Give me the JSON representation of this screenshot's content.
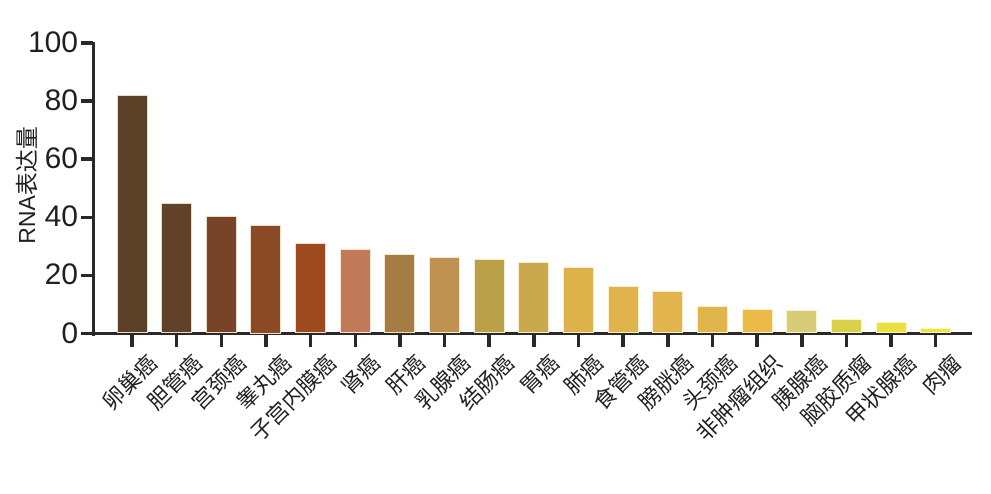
{
  "chart_data": {
    "type": "bar",
    "ylabel": "RNA表达量",
    "xlabel": "",
    "ylim": [
      0,
      100
    ],
    "yticks": [
      0,
      20,
      40,
      60,
      80,
      100
    ],
    "grid": false,
    "legend": "none",
    "categories": [
      "卵巢癌",
      "胆管癌",
      "宫颈癌",
      "睾丸癌",
      "子宫内膜癌",
      "肾癌",
      "肝癌",
      "乳腺癌",
      "结肠癌",
      "胃癌",
      "肺癌",
      "食管癌",
      "膀胱癌",
      "头颈癌",
      "非肿瘤组织",
      "胰腺癌",
      "脑胶质瘤",
      "甲状腺癌",
      "肉瘤"
    ],
    "values": [
      82,
      45,
      40.5,
      37.5,
      31,
      29,
      27.5,
      26.5,
      25.5,
      24.5,
      23,
      16.5,
      14.5,
      9.5,
      8.5,
      8,
      5,
      4,
      2
    ],
    "colors": [
      "#5c4128",
      "#614128",
      "#784427",
      "#8a4a26",
      "#9d4a21",
      "#c07a59",
      "#a57c44",
      "#bf9252",
      "#bba04a",
      "#c9a94c",
      "#ddb24a",
      "#e0b44c",
      "#e1b54c",
      "#e0b54c",
      "#ecba47",
      "#d6cd76",
      "#dbd04a",
      "#ebe13e",
      "#ede43f"
    ],
    "axis_color": "#2b2928",
    "text_color": "#231f20"
  }
}
